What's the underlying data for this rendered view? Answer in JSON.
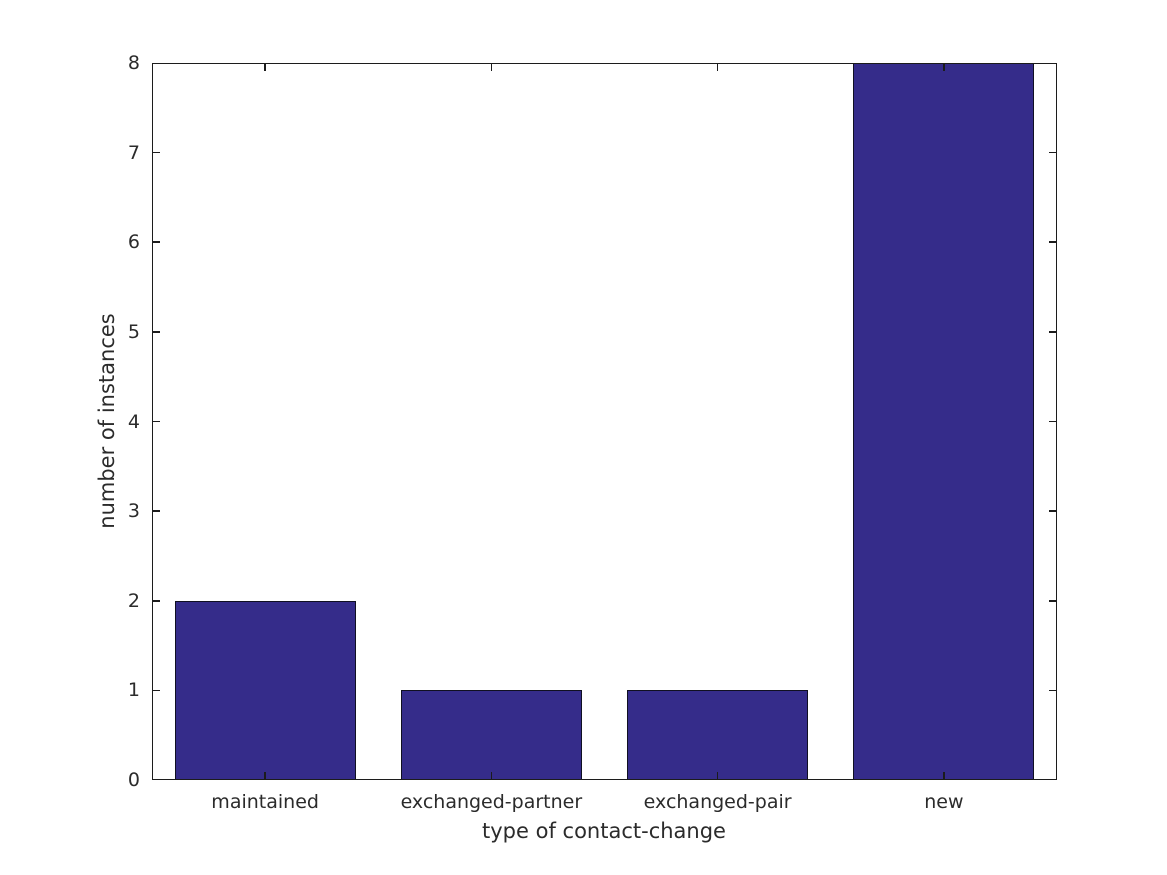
{
  "chart_data": {
    "type": "bar",
    "title": "",
    "xlabel": "type of contact-change",
    "ylabel": "number of instances",
    "categories": [
      "maintained",
      "exchanged-partner",
      "exchanged-pair",
      "new"
    ],
    "values": [
      2,
      1,
      1,
      8
    ],
    "ylim": [
      0,
      8
    ],
    "yticks": [
      0,
      1,
      2,
      3,
      4,
      5,
      6,
      7,
      8
    ],
    "bar_width_fraction": 0.8,
    "grid": false,
    "legend": "none",
    "tick_direction": "in",
    "box": true,
    "colors": {
      "background": "#ffffff",
      "bar_fill": "#352c8a",
      "bar_edge": "#101022",
      "axis": "#1c1c1c",
      "text": "#2b2b2b"
    }
  }
}
